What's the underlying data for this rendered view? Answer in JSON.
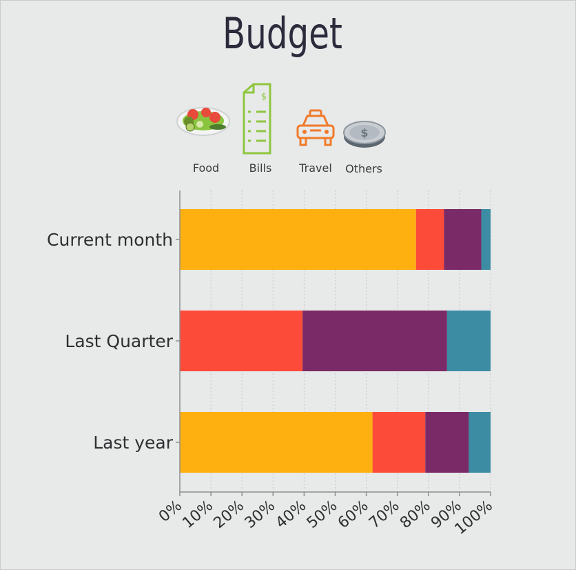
{
  "title": "Budget",
  "legend": [
    {
      "label": "Food",
      "icon": "salad-plate-icon",
      "color": "#FDB010"
    },
    {
      "label": "Bills",
      "icon": "bill-document-icon",
      "color": "#FD4B39"
    },
    {
      "label": "Travel",
      "icon": "taxi-icon",
      "color": "#7A2A66"
    },
    {
      "label": "Others",
      "icon": "coin-icon",
      "color": "#3C8CA4"
    }
  ],
  "chart_data": {
    "type": "bar",
    "orientation": "horizontal",
    "stacked": true,
    "normalized": "percent",
    "categories": [
      "Current month",
      "Last Quarter",
      "Last year"
    ],
    "series": [
      {
        "name": "Food",
        "color": "#FDB010",
        "values": [
          76,
          0,
          62
        ]
      },
      {
        "name": "Bills",
        "color": "#FD4B39",
        "values": [
          9,
          39.5,
          17
        ]
      },
      {
        "name": "Travel",
        "color": "#7A2A66",
        "values": [
          12,
          46.5,
          14
        ]
      },
      {
        "name": "Others",
        "color": "#3C8CA4",
        "values": [
          3,
          14,
          7
        ]
      }
    ],
    "xticks": [
      "0%",
      "10%",
      "20%",
      "30%",
      "40%",
      "50%",
      "60%",
      "70%",
      "80%",
      "90%",
      "100%"
    ],
    "xlim": [
      0,
      100
    ],
    "grid": true,
    "legend_position": "top"
  }
}
